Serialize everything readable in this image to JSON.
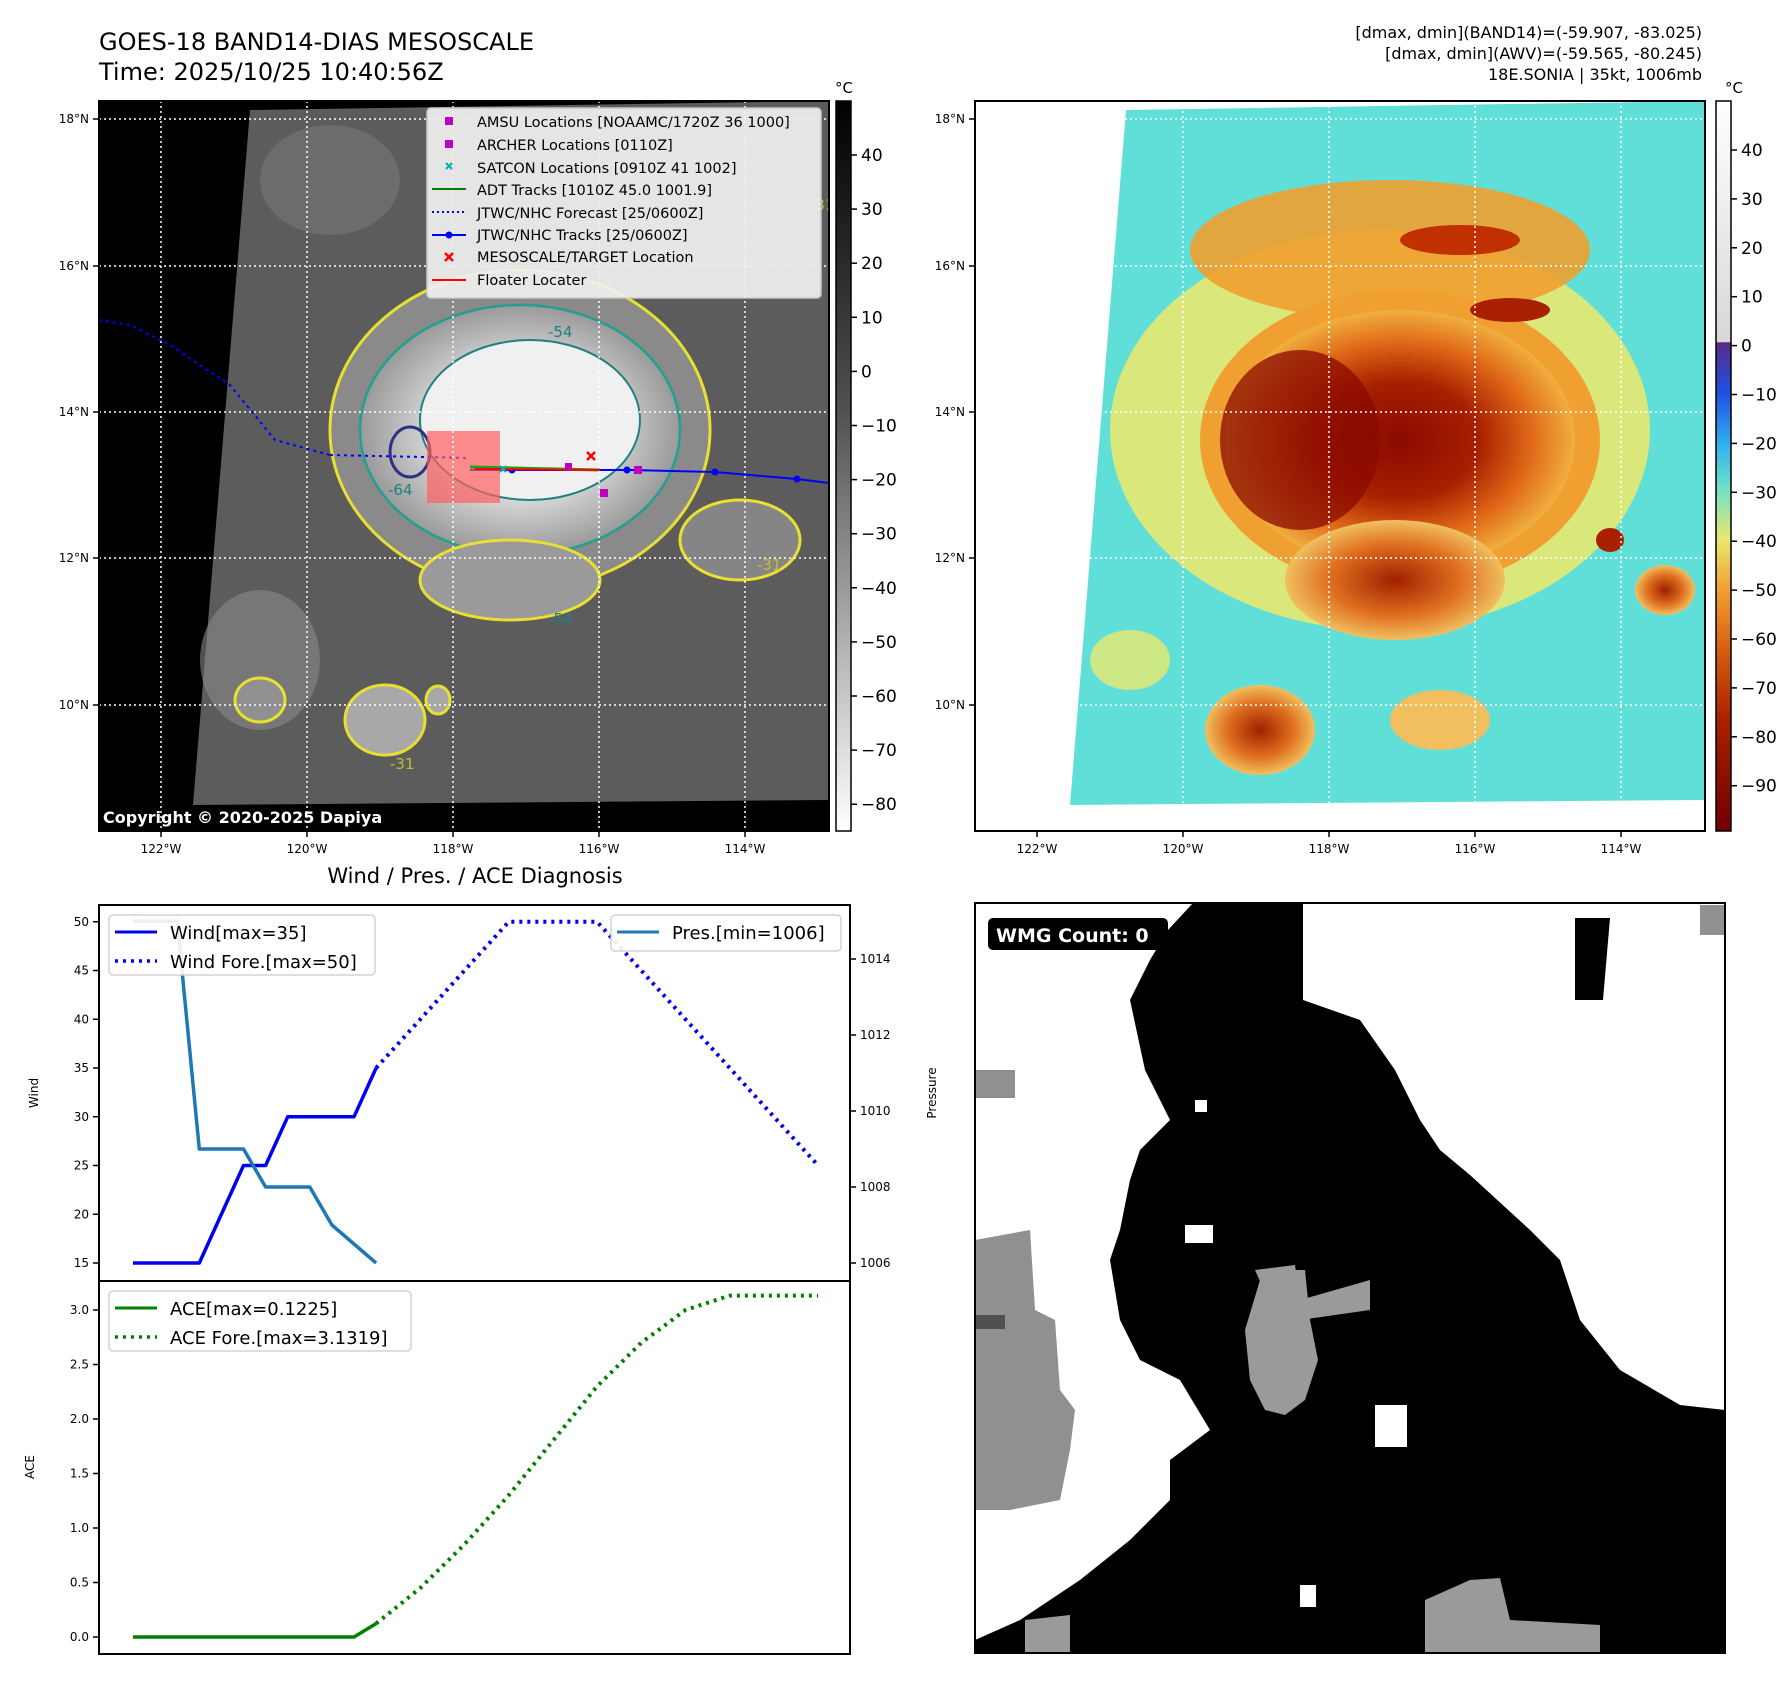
{
  "header": {
    "title_line1": "GOES-18 BAND14-DIAS MESOSCALE",
    "title_line2": "Time: 2025/10/25 10:40:56Z",
    "info_line1": "[dmax, dmin](BAND14)=(-59.907, -83.025)",
    "info_line2": "[dmax, dmin](AWV)=(-59.565, -80.245)",
    "info_line3": "18E.SONIA | 35kt, 1006mb"
  },
  "maps": {
    "lat_ticks": [
      "18°N",
      "16°N",
      "14°N",
      "12°N",
      "10°N"
    ],
    "lon_ticks": [
      "122°W",
      "120°W",
      "118°W",
      "116°W",
      "114°W"
    ],
    "copyright": "Copyright © 2020-2025 Dapiya",
    "contour_labels": [
      "-54",
      "-64",
      "-54",
      "-31",
      "-31",
      "-31"
    ]
  },
  "gray_colorbar": {
    "unit": "°C",
    "ticks": [
      "40",
      "30",
      "20",
      "10",
      "0",
      "−10",
      "−20",
      "−30",
      "−40",
      "−50",
      "−60",
      "−70",
      "−80"
    ]
  },
  "color_colorbar": {
    "unit": "°C",
    "ticks": [
      "40",
      "30",
      "20",
      "10",
      "0",
      "−10",
      "−20",
      "−30",
      "−40",
      "−50",
      "−60",
      "−70",
      "−80",
      "−90"
    ]
  },
  "legend": {
    "items": [
      {
        "label": "AMSU Locations [NOAAMC/1720Z 36 1000]",
        "color": "#c000c0"
      },
      {
        "label": "ARCHER Locations [0110Z]",
        "color": "#c000c0"
      },
      {
        "label": "SATCON Locations [0910Z 41 1002]",
        "color": "#00b0b0"
      },
      {
        "label": "ADT Tracks [1010Z 45.0 1001.9]",
        "color": "#008000"
      },
      {
        "label": "JTWC/NHC Forecast [25/0600Z]",
        "color": "#0000ff"
      },
      {
        "label": "JTWC/NHC Tracks [25/0600Z]",
        "color": "#0000ff"
      },
      {
        "label": "MESOSCALE/TARGET Location",
        "color": "#ff0000"
      },
      {
        "label": "Floater Locater",
        "color": "#ff0000"
      }
    ]
  },
  "wmg": {
    "label": "WMG Count: 0"
  },
  "chart_data": [
    {
      "type": "line",
      "title": "Wind / Pres. / ACE Diagnosis",
      "ylabel": "Wind",
      "ylabel_right": "Pressure",
      "ylim": [
        14,
        51
      ],
      "ylim_right": [
        1005.6,
        1015.4
      ],
      "y_ticks": [
        15,
        20,
        25,
        30,
        35,
        40,
        45,
        50
      ],
      "y_ticks_right": [
        1006,
        1008,
        1010,
        1012,
        1014
      ],
      "legend_left": [
        "Wind[max=35]",
        "Wind Fore.[max=50]"
      ],
      "legend_right": [
        "Pres.[min=1006]"
      ],
      "series": [
        {
          "name": "Wind",
          "color": "#0000ee",
          "axis": "left",
          "x": [
            0,
            3,
            5,
            6,
            7,
            8,
            9,
            10,
            11
          ],
          "values": [
            15,
            15,
            25,
            25,
            30,
            30,
            30,
            30,
            35
          ]
        },
        {
          "name": "Wind Fore.",
          "color": "#0000ee",
          "axis": "left",
          "dotted": true,
          "x": [
            11,
            13,
            15,
            17,
            19,
            21,
            23,
            25,
            27,
            29,
            31
          ],
          "values": [
            35,
            40,
            45,
            50,
            50,
            50,
            45,
            40,
            35,
            30,
            25
          ]
        },
        {
          "name": "Pres.",
          "color": "#1f77b4",
          "axis": "right",
          "x": [
            0,
            2,
            3,
            5,
            6,
            8,
            9,
            11
          ],
          "values": [
            1015,
            1015,
            1009,
            1009,
            1008,
            1008,
            1007,
            1006
          ]
        }
      ]
    },
    {
      "type": "line",
      "ylabel": "ACE",
      "ylim": [
        -0.12,
        3.25
      ],
      "y_ticks": [
        0.0,
        0.5,
        1.0,
        1.5,
        2.0,
        2.5,
        3.0
      ],
      "y_tick_labels": [
        "0.0",
        "0.5",
        "1.0",
        "1.5",
        "2.0",
        "2.5",
        "3.0"
      ],
      "legend": [
        "ACE[max=0.1225]",
        "ACE Fore.[max=3.1319]"
      ],
      "series": [
        {
          "name": "ACE",
          "color": "#008000",
          "x": [
            0,
            10,
            11
          ],
          "values": [
            0,
            0,
            0.1225
          ]
        },
        {
          "name": "ACE Fore.",
          "color": "#008000",
          "dotted": true,
          "x": [
            11,
            13,
            15,
            17,
            19,
            21,
            23,
            25,
            27,
            29,
            31
          ],
          "values": [
            0.1225,
            0.45,
            0.85,
            1.3,
            1.8,
            2.3,
            2.7,
            3.0,
            3.1319,
            3.1319,
            3.1319
          ]
        }
      ]
    }
  ]
}
